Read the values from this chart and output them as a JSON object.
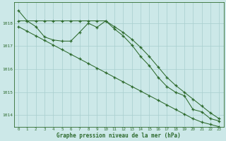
{
  "xlabel": "Graphe pression niveau de la mer (hPa)",
  "line_zigzag_x": [
    0,
    1,
    2,
    3,
    4,
    5,
    6,
    7,
    8,
    9,
    10,
    11,
    12,
    13,
    14,
    15,
    16,
    17,
    18,
    19,
    20,
    21,
    22,
    23
  ],
  "line_zigzag_y": [
    1018.55,
    1018.1,
    1017.85,
    1017.4,
    1017.27,
    1017.22,
    1017.22,
    1017.6,
    1018.0,
    1017.82,
    1018.1,
    1017.75,
    1017.45,
    1017.05,
    1016.55,
    1016.15,
    1015.65,
    1015.25,
    1015.0,
    1014.85,
    1014.25,
    1014.15,
    1013.85,
    1013.75
  ],
  "line_upper_x": [
    0,
    1,
    2,
    3,
    4,
    5,
    6,
    7,
    8,
    9,
    10,
    11,
    12,
    13,
    14,
    15,
    16,
    17,
    18,
    19,
    20,
    21,
    22,
    23
  ],
  "line_upper_y": [
    1018.1,
    1018.1,
    1018.1,
    1018.1,
    1018.1,
    1018.1,
    1018.1,
    1018.1,
    1018.1,
    1018.1,
    1018.1,
    1017.85,
    1017.6,
    1017.3,
    1016.95,
    1016.55,
    1016.1,
    1015.65,
    1015.3,
    1015.0,
    1014.7,
    1014.4,
    1014.1,
    1013.85
  ],
  "line_lower_x": [
    0,
    1,
    2,
    3,
    4,
    5,
    6,
    7,
    8,
    9,
    10,
    11,
    12,
    13,
    14,
    15,
    16,
    17,
    18,
    19,
    20,
    21,
    22,
    23
  ],
  "line_lower_y": [
    1017.85,
    1017.65,
    1017.45,
    1017.25,
    1017.05,
    1016.85,
    1016.65,
    1016.45,
    1016.25,
    1016.05,
    1015.85,
    1015.65,
    1015.45,
    1015.25,
    1015.05,
    1014.85,
    1014.65,
    1014.45,
    1014.25,
    1014.05,
    1013.85,
    1013.7,
    1013.6,
    1013.5
  ],
  "line_color": "#2d6a2d",
  "bg_color": "#cce8e8",
  "grid_color": "#a8cece",
  "ylim": [
    1013.5,
    1018.9
  ],
  "yticks": [
    1014,
    1015,
    1016,
    1017,
    1018
  ],
  "xticks": [
    0,
    1,
    2,
    3,
    4,
    5,
    6,
    7,
    8,
    9,
    10,
    11,
    12,
    13,
    14,
    15,
    16,
    17,
    18,
    19,
    20,
    21,
    22,
    23
  ]
}
